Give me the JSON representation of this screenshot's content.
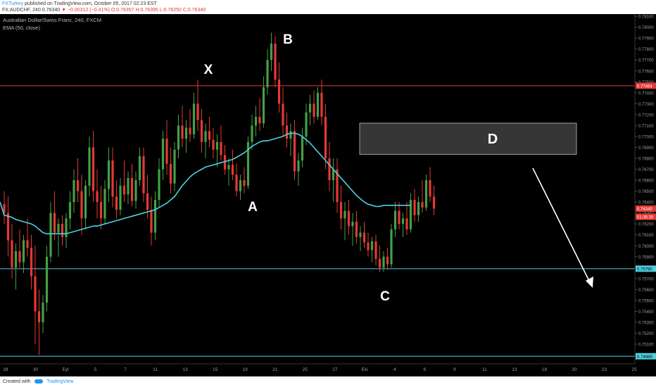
{
  "header": {
    "author": "FXTurkey",
    "published": "published on TradingView.com, October 05, 2017 02:23 EST",
    "symbol": "FX:AUDCHF, 240",
    "last": "0.76340",
    "change": "−0.00312 (−0.41%)",
    "ohlc": "O:0.76357 H:0.76395 L:0.76250 C:0.76340"
  },
  "legend": {
    "instrument": "Australian Dollar/Swiss Franc, 240, FXCM",
    "indicator": "EMA (50, close)"
  },
  "footer": {
    "created_with": "Created with",
    "brand": "TradingView"
  },
  "colors": {
    "background": "#000000",
    "up_candle": "#43a047",
    "down_candle": "#e53935",
    "ema": "#4dd0e1",
    "support_line": "#4dd0e1",
    "resistance_line": "#e53935",
    "zone_fill": "#404040",
    "label_text": "#ffffff"
  },
  "chart_data": {
    "type": "candlestick",
    "title": "Australian Dollar/Swiss Franc, 240, FXCM",
    "x_tick_labels": [
      "28",
      "30",
      "Eyl",
      "5",
      "7",
      "11",
      "13",
      "15",
      "19",
      "21",
      "25",
      "27",
      "Eki",
      "4",
      "6",
      "9",
      "11",
      "13",
      "18",
      "20",
      "23",
      "25"
    ],
    "y_tick_labels": [
      "0.78100",
      "0.78000",
      "0.77900",
      "0.77800",
      "0.77700",
      "0.77600",
      "0.77500",
      "0.77400",
      "0.77300",
      "0.77200",
      "0.77100",
      "0.77000",
      "0.76900",
      "0.76800",
      "0.76700",
      "0.76600",
      "0.76500",
      "0.76400",
      "0.76300",
      "0.76200",
      "0.76100",
      "0.76000",
      "0.75900",
      "0.75800",
      "0.75700",
      "0.75600",
      "0.75500",
      "0.75400",
      "0.75300",
      "0.75200",
      "0.75100",
      "0.75000"
    ],
    "ylim": [
      0.7492,
      0.7812
    ],
    "grid": false,
    "price_markers": [
      {
        "label": "0.77464",
        "value": 0.77464,
        "kind": "resistance"
      },
      {
        "label": "0.76340",
        "value": 0.7634,
        "kind": "last"
      },
      {
        "label": "01:36:35",
        "value": 0.76265,
        "kind": "countdown"
      },
      {
        "label": "0.75790",
        "value": 0.7579,
        "kind": "support"
      },
      {
        "label": "0.74989",
        "value": 0.74989,
        "kind": "support"
      }
    ],
    "horizontal_lines": [
      {
        "value": 0.77464,
        "kind": "resistance"
      },
      {
        "value": 0.7579,
        "kind": "support"
      },
      {
        "value": 0.74989,
        "kind": "support"
      }
    ],
    "pattern_points": [
      {
        "label": "X",
        "value": 0.7752
      },
      {
        "label": "A",
        "value": 0.7645
      },
      {
        "label": "B",
        "value": 0.7795
      },
      {
        "label": "C",
        "value": 0.7576
      }
    ],
    "target_zone": {
      "label": "D",
      "from": 0.76836,
      "to": 0.77122
    },
    "candles": [
      {
        "o": 0.7638,
        "h": 0.765,
        "l": 0.762,
        "c": 0.763
      },
      {
        "o": 0.763,
        "h": 0.7645,
        "l": 0.759,
        "c": 0.7605
      },
      {
        "o": 0.7605,
        "h": 0.762,
        "l": 0.757,
        "c": 0.758
      },
      {
        "o": 0.758,
        "h": 0.7602,
        "l": 0.756,
        "c": 0.7595
      },
      {
        "o": 0.7595,
        "h": 0.7615,
        "l": 0.758,
        "c": 0.7585
      },
      {
        "o": 0.7585,
        "h": 0.761,
        "l": 0.7575,
        "c": 0.7605
      },
      {
        "o": 0.7605,
        "h": 0.7625,
        "l": 0.759,
        "c": 0.7598
      },
      {
        "o": 0.7598,
        "h": 0.761,
        "l": 0.756,
        "c": 0.7572
      },
      {
        "o": 0.7572,
        "h": 0.76,
        "l": 0.751,
        "c": 0.754
      },
      {
        "o": 0.754,
        "h": 0.756,
        "l": 0.75,
        "c": 0.753
      },
      {
        "o": 0.753,
        "h": 0.7555,
        "l": 0.752,
        "c": 0.7548
      },
      {
        "o": 0.7548,
        "h": 0.76,
        "l": 0.754,
        "c": 0.759
      },
      {
        "o": 0.759,
        "h": 0.764,
        "l": 0.7585,
        "c": 0.763
      },
      {
        "o": 0.763,
        "h": 0.765,
        "l": 0.7605,
        "c": 0.7612
      },
      {
        "o": 0.7612,
        "h": 0.7625,
        "l": 0.759,
        "c": 0.762
      },
      {
        "o": 0.762,
        "h": 0.7628,
        "l": 0.76,
        "c": 0.7608
      },
      {
        "o": 0.7608,
        "h": 0.763,
        "l": 0.7598,
        "c": 0.7625
      },
      {
        "o": 0.7625,
        "h": 0.765,
        "l": 0.7615,
        "c": 0.764
      },
      {
        "o": 0.764,
        "h": 0.767,
        "l": 0.763,
        "c": 0.766
      },
      {
        "o": 0.766,
        "h": 0.768,
        "l": 0.764,
        "c": 0.765
      },
      {
        "o": 0.765,
        "h": 0.7665,
        "l": 0.761,
        "c": 0.7625
      },
      {
        "o": 0.7625,
        "h": 0.766,
        "l": 0.7615,
        "c": 0.7655
      },
      {
        "o": 0.7655,
        "h": 0.77,
        "l": 0.7645,
        "c": 0.769
      },
      {
        "o": 0.769,
        "h": 0.7705,
        "l": 0.764,
        "c": 0.765
      },
      {
        "o": 0.765,
        "h": 0.767,
        "l": 0.7625,
        "c": 0.764
      },
      {
        "o": 0.764,
        "h": 0.7655,
        "l": 0.7615,
        "c": 0.7625
      },
      {
        "o": 0.7625,
        "h": 0.766,
        "l": 0.762,
        "c": 0.7652
      },
      {
        "o": 0.7652,
        "h": 0.769,
        "l": 0.764,
        "c": 0.7678
      },
      {
        "o": 0.7678,
        "h": 0.769,
        "l": 0.7635,
        "c": 0.7645
      },
      {
        "o": 0.7645,
        "h": 0.766,
        "l": 0.7625,
        "c": 0.7633
      },
      {
        "o": 0.7633,
        "h": 0.7662,
        "l": 0.7628,
        "c": 0.7655
      },
      {
        "o": 0.7655,
        "h": 0.7678,
        "l": 0.764,
        "c": 0.7647
      },
      {
        "o": 0.7647,
        "h": 0.7668,
        "l": 0.7638,
        "c": 0.7662
      },
      {
        "o": 0.7662,
        "h": 0.7675,
        "l": 0.7636,
        "c": 0.7641
      },
      {
        "o": 0.7641,
        "h": 0.7668,
        "l": 0.7634,
        "c": 0.766
      },
      {
        "o": 0.766,
        "h": 0.769,
        "l": 0.7655,
        "c": 0.7682
      },
      {
        "o": 0.7682,
        "h": 0.769,
        "l": 0.764,
        "c": 0.7648
      },
      {
        "o": 0.7648,
        "h": 0.7665,
        "l": 0.7625,
        "c": 0.7633
      },
      {
        "o": 0.7633,
        "h": 0.7645,
        "l": 0.76,
        "c": 0.7612
      },
      {
        "o": 0.7612,
        "h": 0.765,
        "l": 0.7605,
        "c": 0.7642
      },
      {
        "o": 0.7642,
        "h": 0.768,
        "l": 0.7635,
        "c": 0.767
      },
      {
        "o": 0.767,
        "h": 0.7705,
        "l": 0.766,
        "c": 0.7698
      },
      {
        "o": 0.7698,
        "h": 0.7715,
        "l": 0.7665,
        "c": 0.7675
      },
      {
        "o": 0.7675,
        "h": 0.769,
        "l": 0.7648,
        "c": 0.7657
      },
      {
        "o": 0.7657,
        "h": 0.7695,
        "l": 0.765,
        "c": 0.7688
      },
      {
        "o": 0.7688,
        "h": 0.772,
        "l": 0.768,
        "c": 0.771
      },
      {
        "o": 0.771,
        "h": 0.7728,
        "l": 0.769,
        "c": 0.7698
      },
      {
        "o": 0.7698,
        "h": 0.7715,
        "l": 0.7685,
        "c": 0.7708
      },
      {
        "o": 0.7708,
        "h": 0.7725,
        "l": 0.7695,
        "c": 0.7702
      },
      {
        "o": 0.7702,
        "h": 0.774,
        "l": 0.7698,
        "c": 0.773
      },
      {
        "o": 0.773,
        "h": 0.7752,
        "l": 0.7705,
        "c": 0.7715
      },
      {
        "o": 0.7715,
        "h": 0.7725,
        "l": 0.7685,
        "c": 0.7695
      },
      {
        "o": 0.7695,
        "h": 0.7712,
        "l": 0.768,
        "c": 0.7705
      },
      {
        "o": 0.7705,
        "h": 0.7718,
        "l": 0.769,
        "c": 0.7697
      },
      {
        "o": 0.7697,
        "h": 0.7708,
        "l": 0.768,
        "c": 0.7688
      },
      {
        "o": 0.7688,
        "h": 0.7702,
        "l": 0.7672,
        "c": 0.7695
      },
      {
        "o": 0.7695,
        "h": 0.771,
        "l": 0.7678,
        "c": 0.7683
      },
      {
        "o": 0.7683,
        "h": 0.7692,
        "l": 0.7665,
        "c": 0.767
      },
      {
        "o": 0.767,
        "h": 0.768,
        "l": 0.7655,
        "c": 0.7674
      },
      {
        "o": 0.7674,
        "h": 0.7688,
        "l": 0.766,
        "c": 0.7665
      },
      {
        "o": 0.7665,
        "h": 0.7675,
        "l": 0.7645,
        "c": 0.765
      },
      {
        "o": 0.765,
        "h": 0.7665,
        "l": 0.7642,
        "c": 0.766
      },
      {
        "o": 0.766,
        "h": 0.7672,
        "l": 0.7648,
        "c": 0.7655
      },
      {
        "o": 0.7655,
        "h": 0.77,
        "l": 0.7652,
        "c": 0.7695
      },
      {
        "o": 0.7695,
        "h": 0.772,
        "l": 0.7688,
        "c": 0.771
      },
      {
        "o": 0.771,
        "h": 0.7728,
        "l": 0.77,
        "c": 0.7718
      },
      {
        "o": 0.7718,
        "h": 0.7735,
        "l": 0.7705,
        "c": 0.7712
      },
      {
        "o": 0.7712,
        "h": 0.7755,
        "l": 0.7708,
        "c": 0.7745
      },
      {
        "o": 0.7745,
        "h": 0.778,
        "l": 0.7738,
        "c": 0.777
      },
      {
        "o": 0.777,
        "h": 0.7795,
        "l": 0.776,
        "c": 0.7785
      },
      {
        "o": 0.7785,
        "h": 0.7792,
        "l": 0.7745,
        "c": 0.7752
      },
      {
        "o": 0.7752,
        "h": 0.7768,
        "l": 0.7722,
        "c": 0.773
      },
      {
        "o": 0.773,
        "h": 0.7745,
        "l": 0.77,
        "c": 0.771
      },
      {
        "o": 0.771,
        "h": 0.7722,
        "l": 0.769,
        "c": 0.7698
      },
      {
        "o": 0.7698,
        "h": 0.7712,
        "l": 0.7682,
        "c": 0.7705
      },
      {
        "o": 0.7705,
        "h": 0.7715,
        "l": 0.766,
        "c": 0.7668
      },
      {
        "o": 0.7668,
        "h": 0.7685,
        "l": 0.7655,
        "c": 0.7678
      },
      {
        "o": 0.7678,
        "h": 0.7708,
        "l": 0.7672,
        "c": 0.77
      },
      {
        "o": 0.77,
        "h": 0.773,
        "l": 0.7692,
        "c": 0.7722
      },
      {
        "o": 0.7722,
        "h": 0.7738,
        "l": 0.771,
        "c": 0.773
      },
      {
        "o": 0.773,
        "h": 0.7742,
        "l": 0.7712,
        "c": 0.7718
      },
      {
        "o": 0.7718,
        "h": 0.7745,
        "l": 0.7715,
        "c": 0.774
      },
      {
        "o": 0.774,
        "h": 0.7752,
        "l": 0.771,
        "c": 0.7718
      },
      {
        "o": 0.7718,
        "h": 0.773,
        "l": 0.767,
        "c": 0.768
      },
      {
        "o": 0.768,
        "h": 0.7695,
        "l": 0.765,
        "c": 0.766
      },
      {
        "o": 0.766,
        "h": 0.768,
        "l": 0.764,
        "c": 0.767
      },
      {
        "o": 0.767,
        "h": 0.768,
        "l": 0.763,
        "c": 0.764
      },
      {
        "o": 0.764,
        "h": 0.7655,
        "l": 0.7615,
        "c": 0.7625
      },
      {
        "o": 0.7625,
        "h": 0.764,
        "l": 0.7605,
        "c": 0.7632
      },
      {
        "o": 0.7632,
        "h": 0.7642,
        "l": 0.761,
        "c": 0.7618
      },
      {
        "o": 0.7618,
        "h": 0.763,
        "l": 0.76,
        "c": 0.7622
      },
      {
        "o": 0.7622,
        "h": 0.7632,
        "l": 0.7602,
        "c": 0.7608
      },
      {
        "o": 0.7608,
        "h": 0.7618,
        "l": 0.7595,
        "c": 0.7612
      },
      {
        "o": 0.7612,
        "h": 0.7622,
        "l": 0.7598,
        "c": 0.7603
      },
      {
        "o": 0.7603,
        "h": 0.7612,
        "l": 0.759,
        "c": 0.7596
      },
      {
        "o": 0.7596,
        "h": 0.7608,
        "l": 0.7585,
        "c": 0.7604
      },
      {
        "o": 0.7604,
        "h": 0.761,
        "l": 0.7582,
        "c": 0.7588
      },
      {
        "o": 0.7588,
        "h": 0.76,
        "l": 0.7576,
        "c": 0.758
      },
      {
        "o": 0.758,
        "h": 0.7595,
        "l": 0.7576,
        "c": 0.759
      },
      {
        "o": 0.759,
        "h": 0.7598,
        "l": 0.7578,
        "c": 0.7583
      },
      {
        "o": 0.7583,
        "h": 0.762,
        "l": 0.758,
        "c": 0.7615
      },
      {
        "o": 0.7615,
        "h": 0.764,
        "l": 0.7608,
        "c": 0.7632
      },
      {
        "o": 0.7632,
        "h": 0.764,
        "l": 0.7615,
        "c": 0.762
      },
      {
        "o": 0.762,
        "h": 0.763,
        "l": 0.7608,
        "c": 0.7625
      },
      {
        "o": 0.7625,
        "h": 0.764,
        "l": 0.761,
        "c": 0.7615
      },
      {
        "o": 0.7615,
        "h": 0.7648,
        "l": 0.7612,
        "c": 0.7642
      },
      {
        "o": 0.7642,
        "h": 0.7652,
        "l": 0.7622,
        "c": 0.7628
      },
      {
        "o": 0.7628,
        "h": 0.7645,
        "l": 0.7622,
        "c": 0.764
      },
      {
        "o": 0.764,
        "h": 0.766,
        "l": 0.763,
        "c": 0.7635
      },
      {
        "o": 0.7635,
        "h": 0.7665,
        "l": 0.7632,
        "c": 0.766
      },
      {
        "o": 0.766,
        "h": 0.7672,
        "l": 0.764,
        "c": 0.7645
      },
      {
        "o": 0.7645,
        "h": 0.7655,
        "l": 0.7628,
        "c": 0.7634
      }
    ],
    "ema_50": [
      0.7628,
      0.7627,
      0.7626,
      0.7624,
      0.7623,
      0.7622,
      0.7621,
      0.762,
      0.7618,
      0.7615,
      0.7612,
      0.7611,
      0.7611,
      0.7611,
      0.7611,
      0.7611,
      0.7611,
      0.7612,
      0.7613,
      0.7614,
      0.7615,
      0.7616,
      0.7617,
      0.7618,
      0.7618,
      0.7619,
      0.762,
      0.7621,
      0.7622,
      0.7623,
      0.7624,
      0.7625,
      0.7626,
      0.7627,
      0.7628,
      0.7629,
      0.763,
      0.7631,
      0.7632,
      0.7633,
      0.7635,
      0.7637,
      0.7639,
      0.7642,
      0.7645,
      0.765,
      0.7655,
      0.7659,
      0.7663,
      0.7666,
      0.7668,
      0.767,
      0.7672,
      0.7673,
      0.7674,
      0.7675,
      0.7676,
      0.7677,
      0.7678,
      0.7679,
      0.7681,
      0.7683,
      0.7685,
      0.7688,
      0.7691,
      0.7693,
      0.7695,
      0.7696,
      0.7696,
      0.7697,
      0.7698,
      0.7699,
      0.77,
      0.7702,
      0.7703,
      0.7703,
      0.7702,
      0.77,
      0.7697,
      0.7694,
      0.769,
      0.7686,
      0.7682,
      0.7678,
      0.7674,
      0.767,
      0.7666,
      0.7662,
      0.7658,
      0.7654,
      0.765,
      0.7646,
      0.7643,
      0.764,
      0.7638,
      0.7637,
      0.7636,
      0.7636,
      0.7637,
      0.7637,
      0.7637,
      0.7637,
      0.7637,
      0.7637,
      0.7637,
      0.7637
    ]
  }
}
